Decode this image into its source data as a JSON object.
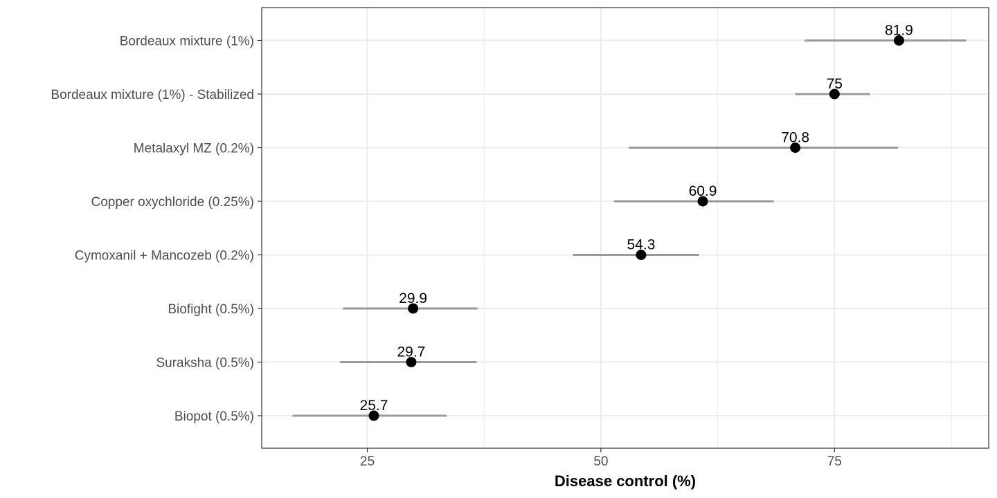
{
  "chart_data": {
    "type": "scatter",
    "subtype": "dot-with-interval",
    "title": "",
    "xlabel": "Disease control (%)",
    "ylabel": "",
    "xlim": [
      13.7,
      91.5
    ],
    "xticks": [
      25,
      50,
      75
    ],
    "grid": true,
    "legend": "none",
    "colors": {
      "point": "#000000",
      "interval": "#999999",
      "grid": "#ebebeb",
      "panel_border": "#333333"
    },
    "categories": [
      "Bordeaux mixture (1%)",
      "Bordeaux mixture (1%) - Stabilized",
      "Metalaxyl MZ (0.2%)",
      "Copper oxychloride (0.25%)",
      "Cymoxanil + Mancozeb (0.2%)",
      "Biofight (0.5%)",
      "Suraksha (0.5%)",
      "Biopot (0.5%)"
    ],
    "values": [
      81.9,
      75.0,
      70.8,
      60.9,
      54.3,
      29.9,
      29.7,
      25.7
    ],
    "value_labels": [
      "81.9",
      "75",
      "70.8",
      "60.9",
      "54.3",
      "29.9",
      "29.7",
      "25.7"
    ],
    "lower": [
      71.8,
      70.8,
      53.0,
      51.4,
      47.0,
      22.4,
      22.1,
      17.0
    ],
    "upper": [
      89.1,
      78.8,
      81.8,
      68.5,
      60.5,
      36.8,
      36.7,
      33.5
    ]
  }
}
